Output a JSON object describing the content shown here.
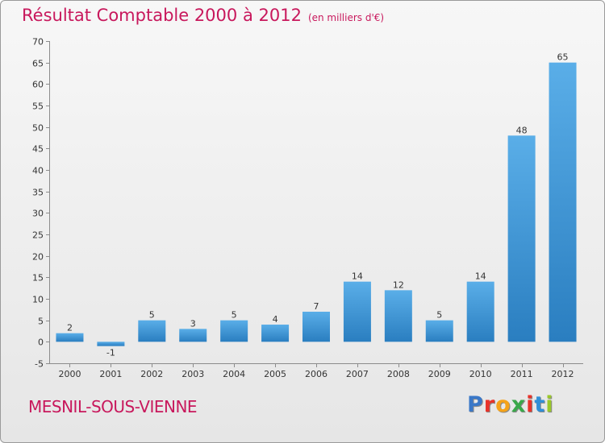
{
  "header": {
    "title": "Résultat Comptable 2000 à 2012",
    "subtitle": "(en milliers d'€)"
  },
  "footer": {
    "town": "MESNIL-SOUS-VIENNE",
    "logo": "Proxiti"
  },
  "colors": {
    "title": "#c8185c",
    "bar_light": "#5aaee8",
    "bar_dark": "#2a7ec0",
    "logo": [
      "#3a78c8",
      "#e8332a",
      "#f5a31a",
      "#3aa84a",
      "#e8332a",
      "#2f8fd8",
      "#9ac82a"
    ]
  },
  "chart_data": {
    "type": "bar",
    "title": "Résultat Comptable 2000 à 2012",
    "subtitle": "(en milliers d'€)",
    "xlabel": "",
    "ylabel": "",
    "categories": [
      "2000",
      "2001",
      "2002",
      "2003",
      "2004",
      "2005",
      "2006",
      "2007",
      "2008",
      "2009",
      "2010",
      "2011",
      "2012"
    ],
    "values": [
      2,
      -1,
      5,
      3,
      5,
      4,
      7,
      14,
      12,
      5,
      14,
      48,
      65
    ],
    "data_labels": [
      "2",
      "-1",
      "5",
      "3",
      "5",
      "4",
      "7",
      "14",
      "12",
      "5",
      "14",
      "48",
      "65"
    ],
    "ylim": [
      -5,
      70
    ],
    "yticks": [
      -5,
      0,
      5,
      10,
      15,
      20,
      25,
      30,
      35,
      40,
      45,
      50,
      55,
      60,
      65,
      70
    ],
    "grid": false
  }
}
